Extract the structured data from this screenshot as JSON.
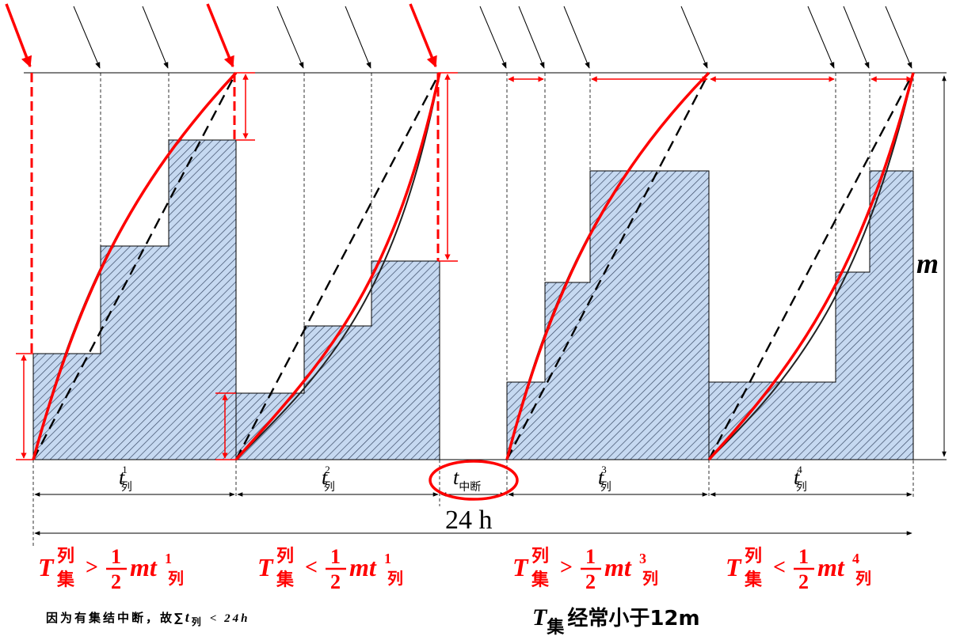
{
  "colors": {
    "red": "#ff0000",
    "fill": "#c6d9f1",
    "hatch": "#3a4a66",
    "line": "#000000"
  },
  "labels": {
    "period1": {
      "base": "t",
      "sup": "1",
      "sub": "列"
    },
    "period2": {
      "base": "t",
      "sup": "2",
      "sub": "列"
    },
    "interrupt": {
      "base": "t",
      "sub": "中断"
    },
    "period3": {
      "base": "t",
      "sup": "3",
      "sub": "列"
    },
    "period4": {
      "base": "t",
      "sup": "4",
      "sub": "列"
    },
    "total_span": "24 h",
    "height_label": "m"
  },
  "formulas": [
    {
      "lhs": "T",
      "lhs_sup": "列",
      "lhs_sub": "集",
      "op": ">",
      "num": "1",
      "den": "2",
      "rhs": "mt",
      "rhs_sup": "1",
      "rhs_sub": "列"
    },
    {
      "lhs": "T",
      "lhs_sup": "列",
      "lhs_sub": "集",
      "op": "<",
      "num": "1",
      "den": "2",
      "rhs": "mt",
      "rhs_sup": "1",
      "rhs_sub": "列"
    },
    {
      "lhs": "T",
      "lhs_sup": "列",
      "lhs_sub": "集",
      "op": ">",
      "num": "1",
      "den": "2",
      "rhs": "mt",
      "rhs_sup": "3",
      "rhs_sub": "列"
    },
    {
      "lhs": "T",
      "lhs_sup": "列",
      "lhs_sub": "集",
      "op": "<",
      "num": "1",
      "den": "2",
      "rhs": "mt",
      "rhs_sup": "4",
      "rhs_sub": "列"
    }
  ],
  "footer": {
    "note_left": "因为有集结中断，故∑",
    "note_left_t": "t",
    "note_left_sub": "列",
    "note_left_tail": "< 24h",
    "note_right_T": "T",
    "note_right_sub": "集",
    "note_right_tail": "经常小于12m"
  }
}
